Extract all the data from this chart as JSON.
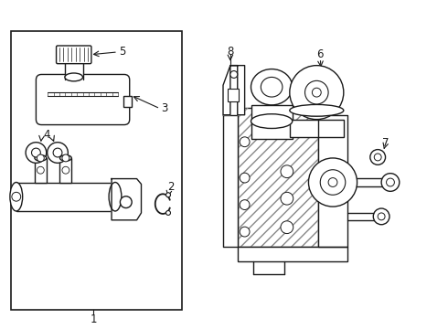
{
  "bg_color": "#ffffff",
  "line_color": "#1a1a1a",
  "line_width": 1.0,
  "fig_width": 4.9,
  "fig_height": 3.6,
  "dpi": 100
}
